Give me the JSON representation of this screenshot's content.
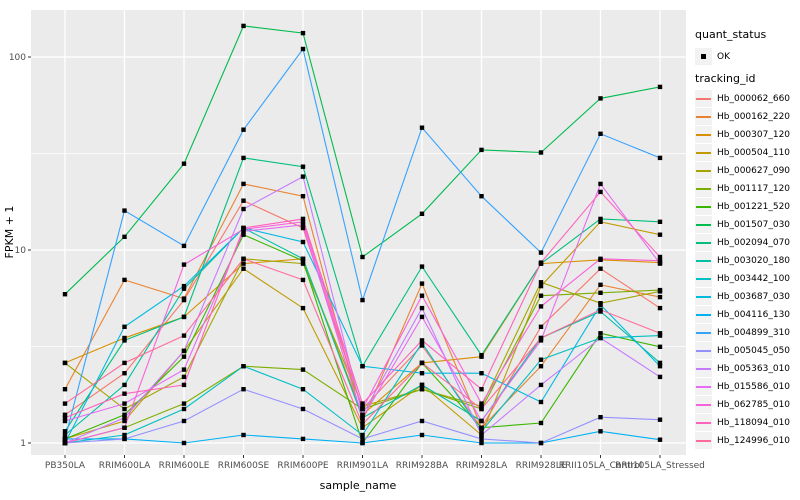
{
  "chart_data": {
    "type": "line",
    "title": "",
    "xlabel": "sample_name",
    "ylabel": "FPKM + 1",
    "y_scale": "log10",
    "y_ticks": [
      1,
      10,
      100
    ],
    "y_tick_labels": [
      "1",
      "10",
      "100"
    ],
    "y_minor_ticks": [
      3.1623,
      31.623
    ],
    "ylim": [
      0.87,
      175
    ],
    "grid": true,
    "panel_bg": "#EBEBEB",
    "grid_color": "#FFFFFF",
    "point_color": "#000000",
    "axis_text_color": "#4D4D4D",
    "categories": [
      "PB350LA",
      "RRIM600LA",
      "RRIM600LE",
      "RRIM600SE",
      "RRIM600PE",
      "RRIM901LA",
      "RRIM928BA",
      "RRIM928LA",
      "RRIM928LE",
      "RRII105LA_Control",
      "RRII105LA_Stressed"
    ],
    "series": [
      {
        "id": "Hb_000062_660",
        "color": "#F8766D",
        "values": [
          1.4,
          2.3,
          5.5,
          18,
          13,
          1.5,
          3.2,
          1.2,
          4.0,
          8.0,
          5.0
        ]
      },
      {
        "id": "Hb_000162_220",
        "color": "#EA8331",
        "values": [
          1.9,
          7.0,
          5.6,
          22,
          19,
          1.3,
          6.7,
          1.2,
          2.5,
          6.6,
          5.7
        ]
      },
      {
        "id": "Hb_000307_120",
        "color": "#D89000",
        "values": [
          2.6,
          3.5,
          4.5,
          8.5,
          9.0,
          1.4,
          2.6,
          2.8,
          8.5,
          8.9,
          8.6
        ]
      },
      {
        "id": "Hb_000504_110",
        "color": "#C09B00",
        "values": [
          1.05,
          1.3,
          3.0,
          8.0,
          5.0,
          1.2,
          2.0,
          1.1,
          6.5,
          14,
          12
        ]
      },
      {
        "id": "Hb_000627_090",
        "color": "#A3A500",
        "values": [
          2.6,
          1.5,
          2.2,
          9.0,
          8.5,
          1.55,
          1.9,
          1.55,
          6.8,
          5.3,
          6.1
        ]
      },
      {
        "id": "Hb_001117_120",
        "color": "#7CAE00",
        "values": [
          1.0,
          1.2,
          1.6,
          2.5,
          2.4,
          1.5,
          1.9,
          1.5,
          5.8,
          6.0,
          6.2
        ]
      },
      {
        "id": "Hb_001221_520",
        "color": "#39B600",
        "values": [
          1.05,
          1.4,
          2.8,
          12,
          8.8,
          1.0,
          2.6,
          1.2,
          1.27,
          3.7,
          3.15
        ]
      },
      {
        "id": "Hb_001507_030",
        "color": "#00BB4E",
        "values": [
          5.9,
          11.7,
          28,
          145,
          133,
          9.2,
          15.4,
          33,
          32,
          61,
          70
        ]
      },
      {
        "id": "Hb_002094_070",
        "color": "#00BF7D",
        "values": [
          1.15,
          3.4,
          4.5,
          30,
          27,
          2.5,
          8.2,
          2.85,
          8.5,
          14.5,
          14
        ]
      },
      {
        "id": "Hb_003020_180",
        "color": "#00C1A3",
        "values": [
          1.1,
          2.0,
          6.3,
          13,
          9.0,
          1.35,
          2.0,
          1.3,
          3.5,
          4.8,
          2.6
        ]
      },
      {
        "id": "Hb_003442_100",
        "color": "#00BFC4",
        "values": [
          1.0,
          1.1,
          1.5,
          2.5,
          1.9,
          1.1,
          3.3,
          1.15,
          2.7,
          3.5,
          3.6
        ]
      },
      {
        "id": "Hb_003687_030",
        "color": "#00BAE0",
        "values": [
          1.0,
          4.0,
          6.5,
          13,
          11,
          2.5,
          2.3,
          2.3,
          1.63,
          5.2,
          2.5
        ]
      },
      {
        "id": "Hb_004116_130",
        "color": "#00B0F6",
        "values": [
          1.05,
          1.05,
          1.0,
          1.1,
          1.05,
          1.0,
          1.1,
          1.0,
          1.0,
          1.15,
          1.04
        ]
      },
      {
        "id": "Hb_004899_310",
        "color": "#35A2FF",
        "values": [
          1.05,
          16,
          10.5,
          42,
          110,
          5.5,
          43,
          19,
          9.7,
          40,
          30
        ]
      },
      {
        "id": "Hb_005045_050",
        "color": "#9590FF",
        "values": [
          1.0,
          1.05,
          1.3,
          1.9,
          1.5,
          1.05,
          1.3,
          1.05,
          1.0,
          1.36,
          1.32
        ]
      },
      {
        "id": "Hb_005363_010",
        "color": "#C77CFF",
        "values": [
          1.0,
          1.35,
          3.0,
          16.3,
          24,
          1.4,
          5.0,
          1.1,
          2.0,
          3.5,
          2.2
        ]
      },
      {
        "id": "Hb_015586_010",
        "color": "#E76BF3",
        "values": [
          1.3,
          1.6,
          2.4,
          12.5,
          13.5,
          1.35,
          4.5,
          1.3,
          3.4,
          22,
          8.5
        ]
      },
      {
        "id": "Hb_062785_010",
        "color": "#FA62DB",
        "values": [
          1.0,
          1.2,
          8.4,
          12.8,
          14,
          1.5,
          5.8,
          1.6,
          5.1,
          9.0,
          8.8
        ]
      },
      {
        "id": "Hb_118094_010",
        "color": "#FF62BC",
        "values": [
          1.35,
          1.8,
          2.0,
          13,
          14.5,
          1.6,
          3.4,
          1.9,
          8.6,
          20,
          9.2
        ]
      },
      {
        "id": "Hb_124996_010",
        "color": "#FF6A98",
        "values": [
          1.6,
          2.6,
          3.6,
          9.0,
          7.0,
          1.25,
          2.6,
          1.5,
          3.5,
          4.9,
          3.7
        ]
      }
    ],
    "legend": {
      "quant_status_title": "quant_status",
      "quant_status_items": [
        {
          "label": "OK",
          "symbol": "black-point"
        }
      ],
      "tracking_id_title": "tracking_id",
      "key_bg": "#F2F2F2",
      "position": "right"
    }
  }
}
